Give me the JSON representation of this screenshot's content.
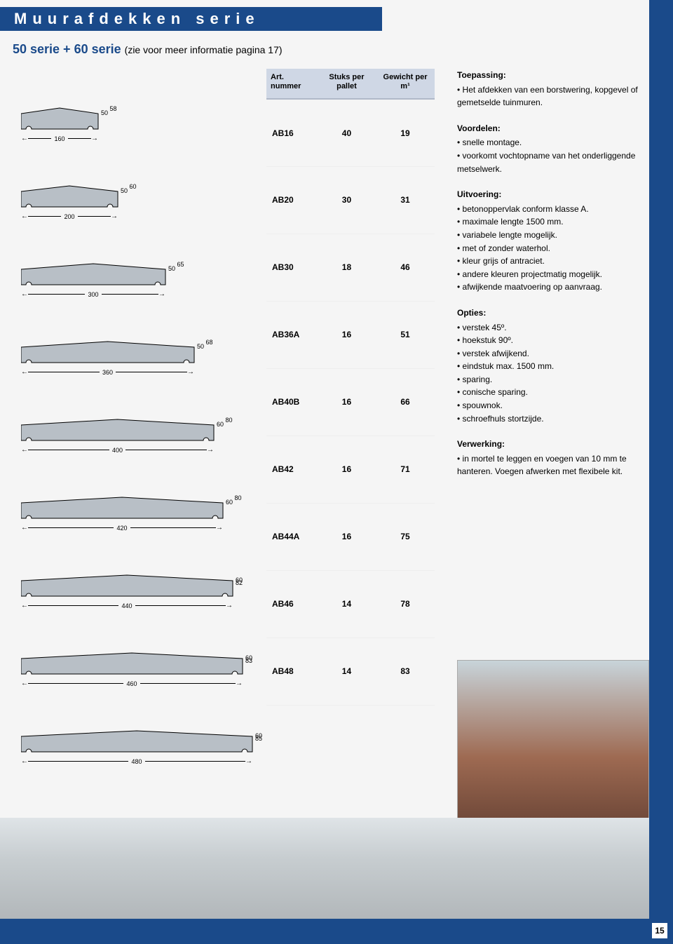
{
  "colors": {
    "brand_blue": "#1a4a8a",
    "table_header_bg": "#cfd7e5",
    "shape_fill": "#b8bfc6",
    "shape_stroke": "#000000"
  },
  "title": "Muurafdekken serie",
  "subtitle": "50 serie + 60 serie",
  "subtitle_note": "(zie voor meer informatie pagina 17)",
  "table": {
    "headers": [
      "Art. nummer",
      "Stuks per pallet",
      "Gewicht per m¹"
    ],
    "rows": [
      {
        "art": "AB16",
        "stuks": "40",
        "gewicht": "19"
      },
      {
        "art": "AB20",
        "stuks": "30",
        "gewicht": "31"
      },
      {
        "art": "AB30",
        "stuks": "18",
        "gewicht": "46"
      },
      {
        "art": "AB36A",
        "stuks": "16",
        "gewicht": "51"
      },
      {
        "art": "AB40B",
        "stuks": "16",
        "gewicht": "66"
      },
      {
        "art": "AB42",
        "stuks": "16",
        "gewicht": "71"
      },
      {
        "art": "AB44A",
        "stuks": "16",
        "gewicht": "75"
      },
      {
        "art": "AB46",
        "stuks": "14",
        "gewicht": "78"
      },
      {
        "art": "AB48",
        "stuks": "14",
        "gewicht": "83"
      }
    ]
  },
  "profiles": [
    {
      "width": "160",
      "h1": "50",
      "h2": "58",
      "draw_w": 110
    },
    {
      "width": "200",
      "h1": "50",
      "h2": "60",
      "draw_w": 138
    },
    {
      "width": "300",
      "h1": "50",
      "h2": "65",
      "draw_w": 206
    },
    {
      "width": "360",
      "h1": "50",
      "h2": "68",
      "draw_w": 247
    },
    {
      "width": "400",
      "h1": "60",
      "h2": "80",
      "draw_w": 275
    },
    {
      "width": "420",
      "h1": "60",
      "h2": "80",
      "draw_w": 288
    },
    {
      "width": "440",
      "h1": "60",
      "h2": "82",
      "draw_w": 302
    },
    {
      "width": "460",
      "h1": "60",
      "h2": "83",
      "draw_w": 316
    },
    {
      "width": "480",
      "h1": "60",
      "h2": "85",
      "draw_w": 330
    }
  ],
  "sections": {
    "toepassing": {
      "head": "Toepassing:",
      "items": [
        "Het afdekken van een borstwering, kopgevel of gemetselde tuinmuren."
      ]
    },
    "voordelen": {
      "head": "Voordelen:",
      "items": [
        "snelle montage.",
        "voorkomt vochtopname van het onderliggende metselwerk."
      ]
    },
    "uitvoering": {
      "head": "Uitvoering:",
      "items": [
        "betonoppervlak conform klasse A.",
        "maximale lengte 1500 mm.",
        "variabele lengte mogelijk.",
        "met of zonder waterhol.",
        "kleur grijs of antraciet.",
        "andere kleuren projectmatig mogelijk.",
        "afwijkende maatvoering op aanvraag."
      ]
    },
    "opties": {
      "head": "Opties:",
      "items": [
        "verstek 45º.",
        "hoekstuk 90º.",
        "verstek afwijkend.",
        "eindstuk max. 1500 mm.",
        "sparing.",
        "conische sparing.",
        "spouwnok.",
        "schroefhuls stortzijde."
      ]
    },
    "verwerking": {
      "head": "Verwerking:",
      "items": [
        "in mortel te leggen en voegen van 10 mm te hanteren. Voegen afwerken met flexibele kit."
      ]
    }
  },
  "page_number": "15"
}
